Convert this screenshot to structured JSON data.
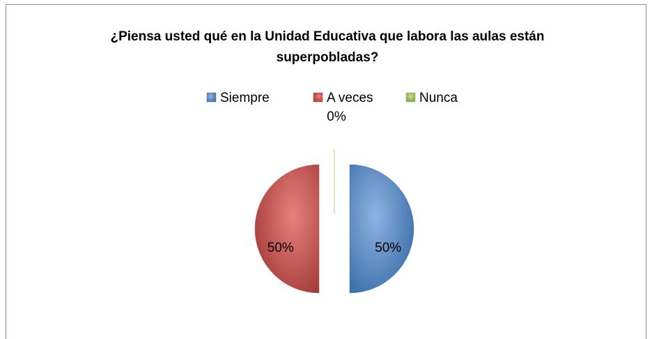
{
  "chart_data": {
    "type": "pie",
    "title": "¿Piensa usted qué en la Unidad Educativa que labora las aulas están superpobladas?",
    "categories": [
      "Siempre",
      "A veces",
      "Nunca"
    ],
    "values": [
      50,
      50,
      0
    ],
    "value_labels": [
      "50%",
      "50%",
      "0%"
    ],
    "colors": [
      "#4f81bd",
      "#c0504d",
      "#9bbb59"
    ],
    "legend": "top"
  }
}
